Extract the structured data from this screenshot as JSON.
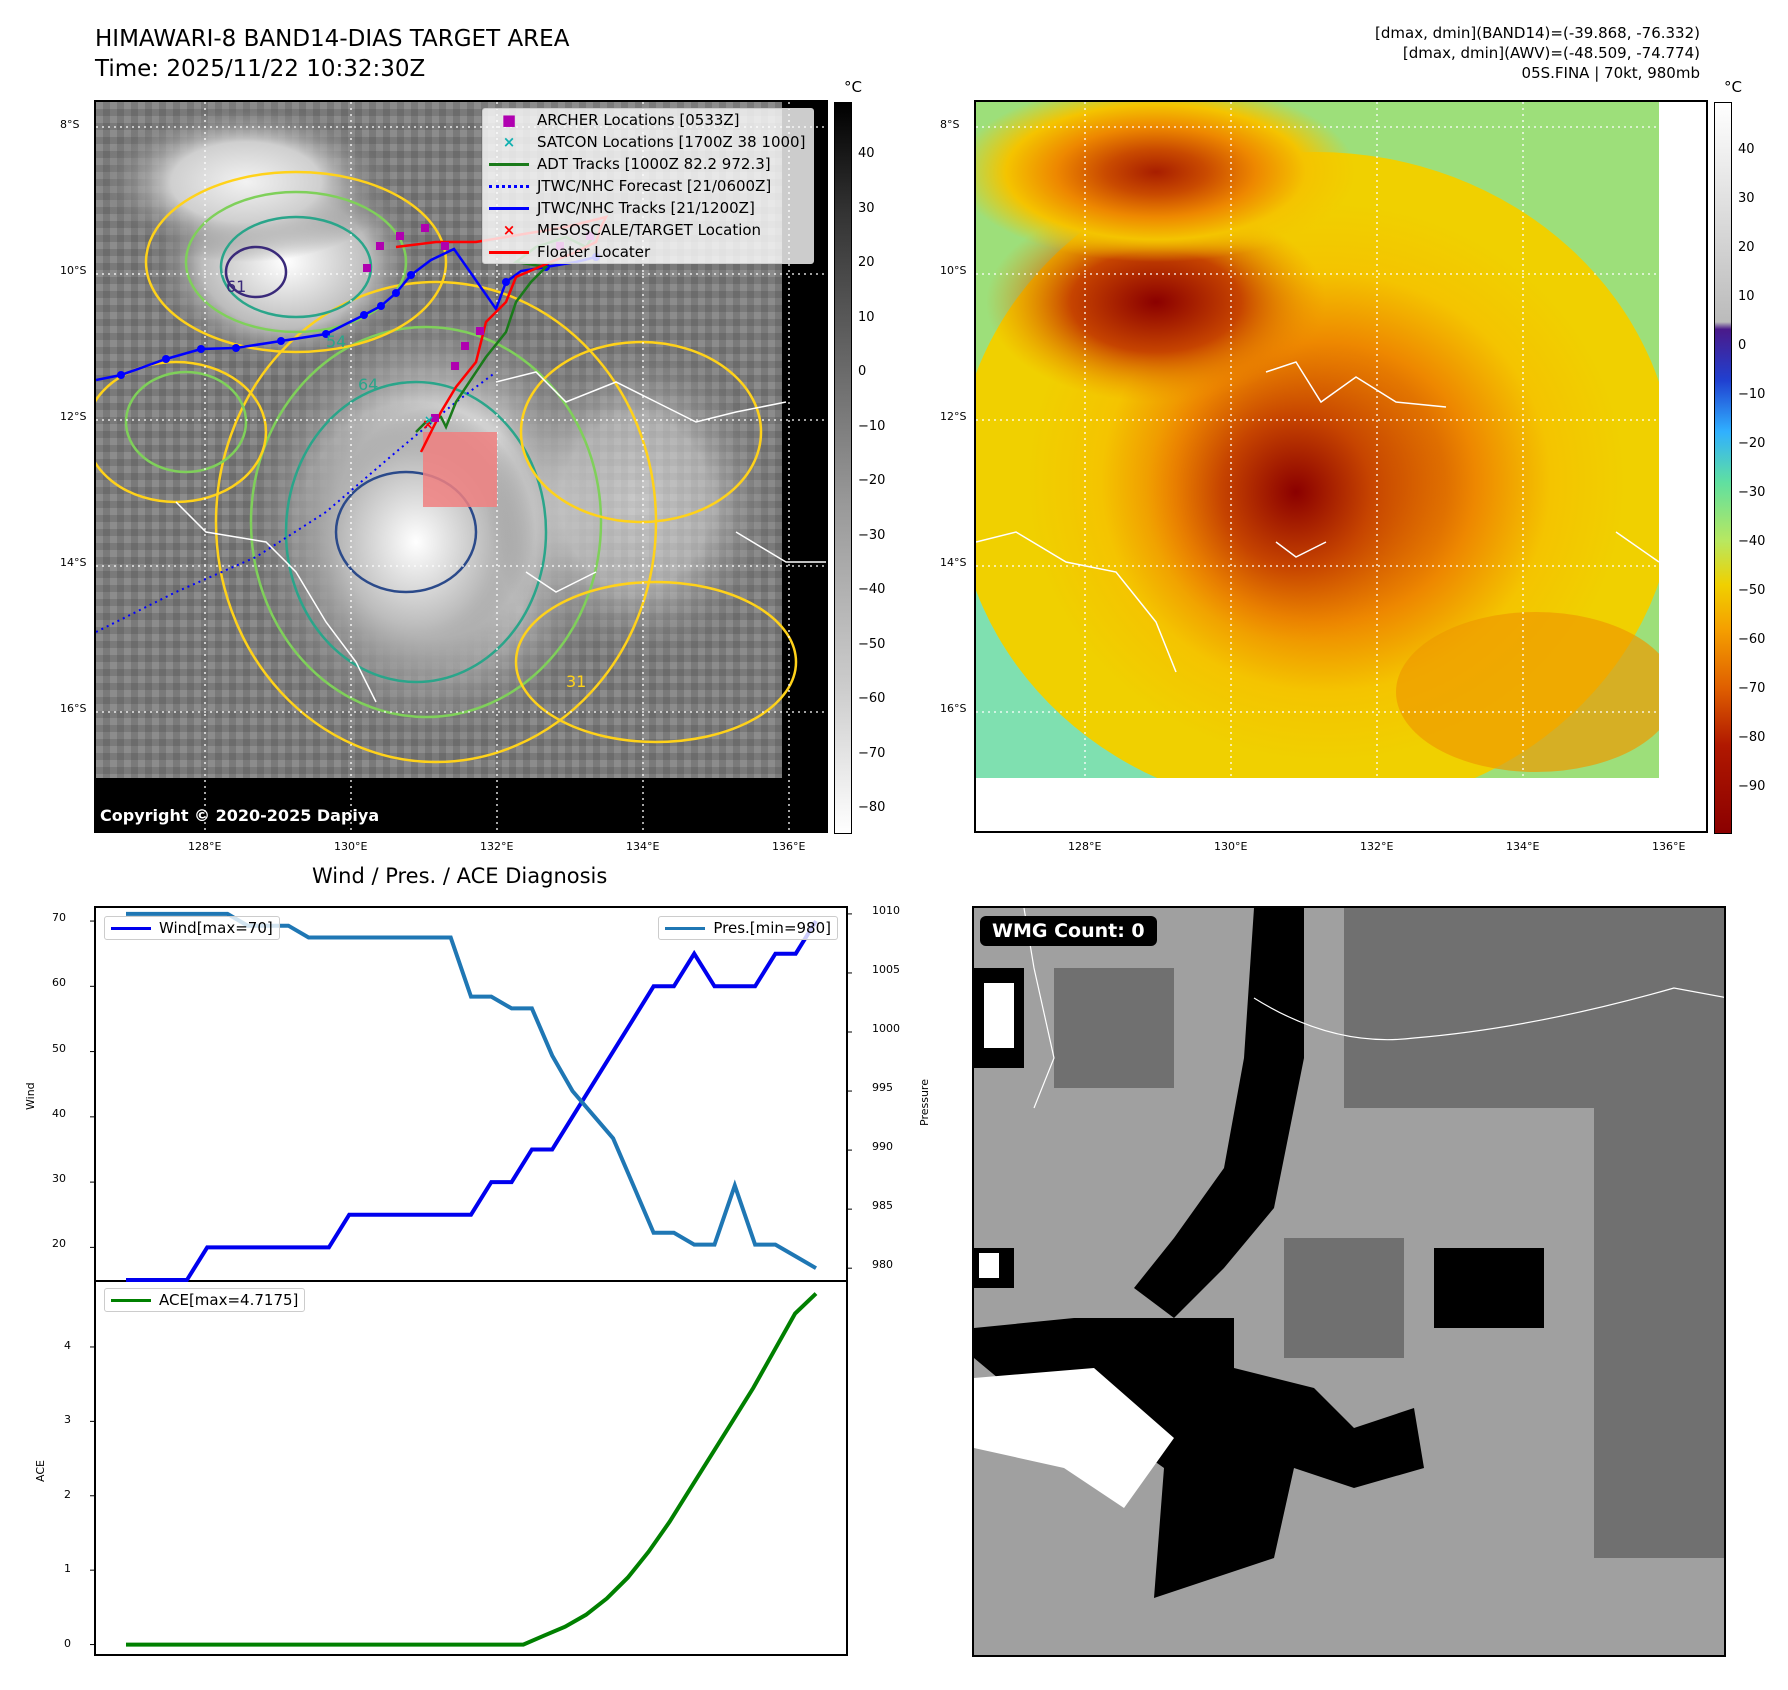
{
  "header": {
    "title_line1": "HIMAWARI-8 BAND14-DIAS TARGET AREA",
    "title_line2": "Time: 2025/11/22 10:32:30Z",
    "right_line1": "[dmax, dmin](BAND14)=(-39.868, -76.332)",
    "right_line2": "[dmax, dmin](AWV)=(-48.509, -74.774)",
    "right_line3": "05S.FINA | 70kt, 980mb"
  },
  "map": {
    "lat_labels": [
      "8°S",
      "10°S",
      "12°S",
      "14°S",
      "16°S"
    ],
    "lon_labels": [
      "128°E",
      "130°E",
      "132°E",
      "134°E",
      "136°E"
    ],
    "copyright": "Copyright © 2020-2025 Dapiya",
    "legend": [
      {
        "label": "ARCHER Locations [0533Z]",
        "color": "#b000b0",
        "marker": "square"
      },
      {
        "label": "SATCON Locations [1700Z 38 1000]",
        "color": "#10b0b0",
        "marker": "x"
      },
      {
        "label": "ADT Tracks [1000Z 82.2 972.3]",
        "color": "#1a7a1a",
        "marker": "line"
      },
      {
        "label": "JTWC/NHC Forecast [21/0600Z]",
        "color": "#0000ff",
        "marker": "dotted"
      },
      {
        "label": "JTWC/NHC Tracks [21/1200Z]",
        "color": "#0000ff",
        "marker": "line-dot"
      },
      {
        "label": "MESOSCALE/TARGET Location",
        "color": "#ff0000",
        "marker": "x"
      },
      {
        "label": "Floater Locater",
        "color": "#ff0000",
        "marker": "line"
      }
    ],
    "contour_labels": [
      "54",
      "64",
      "61",
      "31"
    ]
  },
  "colorbar_gray": {
    "unit": "°C",
    "ticks": [
      "40",
      "30",
      "20",
      "10",
      "0",
      "−10",
      "−20",
      "−30",
      "−40",
      "−50",
      "−60",
      "−70",
      "−80"
    ]
  },
  "colorbar_color": {
    "unit": "°C",
    "ticks": [
      "40",
      "30",
      "20",
      "10",
      "0",
      "−10",
      "−20",
      "−30",
      "−40",
      "−50",
      "−60",
      "−70",
      "−80",
      "−90"
    ]
  },
  "wmg": {
    "label": "WMG Count: 0"
  },
  "chart_data": [
    {
      "type": "line",
      "title": "Wind / Pres. / ACE Diagnosis",
      "ylabel": "Wind",
      "y2label": "Pressure",
      "ylim": [
        15,
        72
      ],
      "y2lim": [
        979,
        1010.5
      ],
      "yticks": [
        20,
        30,
        40,
        50,
        60,
        70
      ],
      "y2ticks": [
        980,
        985,
        990,
        995,
        1000,
        1005,
        1010
      ],
      "series": [
        {
          "name": "Wind[max=70]",
          "color": "#0000ee",
          "axis": "left",
          "values": [
            15,
            15,
            15,
            15,
            20,
            20,
            20,
            20,
            20,
            20,
            20,
            25,
            25,
            25,
            25,
            25,
            25,
            25,
            30,
            30,
            35,
            35,
            40,
            45,
            50,
            55,
            60,
            60,
            65,
            60,
            60,
            60,
            65,
            65,
            70
          ]
        },
        {
          "name": "Pres.[min=980]",
          "color": "#1f77b4",
          "axis": "right",
          "values": [
            1010,
            1010,
            1010,
            1010,
            1010,
            1010,
            1009,
            1009,
            1009,
            1008,
            1008,
            1008,
            1008,
            1008,
            1008,
            1008,
            1008,
            1003,
            1003,
            1002,
            1002,
            998,
            995,
            993,
            991,
            987,
            983,
            983,
            982,
            982,
            987,
            982,
            982,
            981,
            980
          ]
        }
      ]
    },
    {
      "type": "line",
      "ylabel": "ACE",
      "ylim": [
        -0.1,
        4.9
      ],
      "yticks": [
        0,
        1,
        2,
        3,
        4
      ],
      "series": [
        {
          "name": "ACE[max=4.7175]",
          "color": "#008000",
          "values": [
            0,
            0,
            0,
            0,
            0,
            0,
            0,
            0,
            0,
            0,
            0,
            0,
            0,
            0,
            0,
            0,
            0,
            0,
            0,
            0,
            0.12,
            0.24,
            0.4,
            0.62,
            0.9,
            1.25,
            1.65,
            2.1,
            2.55,
            3.0,
            3.45,
            3.95,
            4.45,
            4.7175
          ]
        }
      ]
    }
  ]
}
